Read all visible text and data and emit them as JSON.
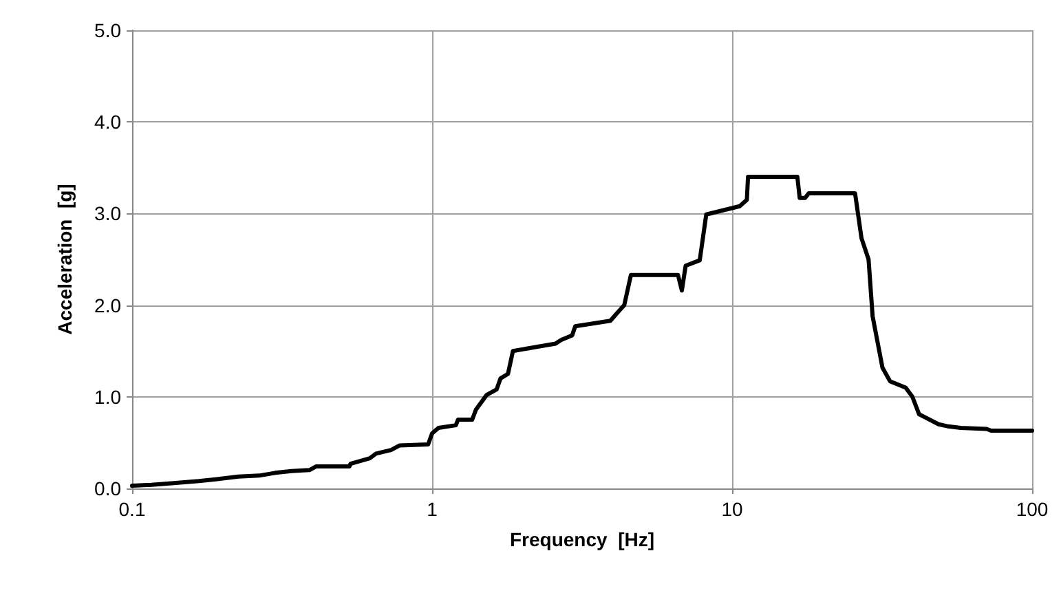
{
  "chart_data": {
    "type": "line",
    "xlabel": "Frequency  [Hz]",
    "ylabel": "Acceleration  [g]",
    "x": [
      0.1,
      0.116,
      0.14,
      0.167,
      0.19,
      0.226,
      0.265,
      0.3,
      0.34,
      0.39,
      0.41,
      0.53,
      0.535,
      0.62,
      0.65,
      0.73,
      0.78,
      0.97,
      1.0,
      1.05,
      1.2,
      1.22,
      1.36,
      1.4,
      1.52,
      1.64,
      1.69,
      1.79,
      1.86,
      2.58,
      2.69,
      2.93,
      3.0,
      3.93,
      4.1,
      4.37,
      4.6,
      6.6,
      6.8,
      7.0,
      7.8,
      8.2,
      10.6,
      11.2,
      11.3,
      16.5,
      16.8,
      17.5,
      18,
      25.7,
      27,
      28.5,
      29.4,
      31.7,
      33.6,
      37.9,
      39.9,
      42,
      48.8,
      52,
      57.8,
      70.5,
      73,
      100
    ],
    "series": [
      {
        "color": "#000000",
        "values": [
          0.03,
          0.04,
          0.06,
          0.08,
          0.1,
          0.13,
          0.14,
          0.17,
          0.19,
          0.2,
          0.24,
          0.24,
          0.27,
          0.33,
          0.38,
          0.42,
          0.47,
          0.48,
          0.6,
          0.66,
          0.69,
          0.75,
          0.75,
          0.86,
          1.02,
          1.08,
          1.2,
          1.25,
          1.5,
          1.58,
          1.62,
          1.67,
          1.77,
          1.83,
          1.9,
          2.0,
          2.33,
          2.33,
          2.16,
          2.43,
          2.49,
          2.99,
          3.08,
          3.15,
          3.4,
          3.4,
          3.17,
          3.17,
          3.22,
          3.22,
          2.73,
          2.5,
          1.88,
          1.32,
          1.17,
          1.1,
          1.0,
          0.81,
          0.7,
          0.68,
          0.66,
          0.65,
          0.63,
          0.63
        ]
      }
    ],
    "xlim": [
      0.1,
      100
    ],
    "xticks": [
      0.1,
      1,
      10,
      100
    ],
    "ylim": [
      0,
      5
    ],
    "yticks": [
      {
        "value": 0,
        "label": "0.0"
      },
      {
        "value": 1,
        "label": "1.0"
      },
      {
        "value": 2,
        "label": "2.0"
      },
      {
        "value": 3,
        "label": "3.0"
      },
      {
        "value": 4,
        "label": "4.0"
      },
      {
        "value": 5,
        "label": "5.0"
      }
    ],
    "log": "x",
    "grid": true,
    "marker": "none",
    "line_style": "solid"
  }
}
